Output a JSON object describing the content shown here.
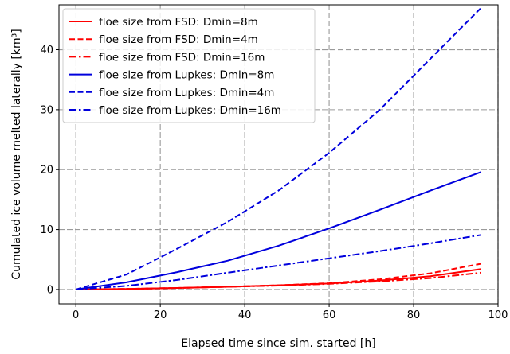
{
  "chart_data": {
    "type": "line",
    "title": "",
    "xlabel": "Elapsed time since sim. started [h]",
    "ylabel": "Cumulated ice volume melted laterally [km³]",
    "xlim": [
      -4,
      100
    ],
    "ylim": [
      -2.4,
      47.5
    ],
    "xticks": [
      0,
      20,
      40,
      60,
      80,
      100
    ],
    "yticks": [
      0,
      10,
      20,
      30,
      40
    ],
    "grid": true,
    "grid_style": "dashed",
    "legend_position": "top-left",
    "x": [
      0,
      12,
      24,
      36,
      48,
      60,
      72,
      84,
      96
    ],
    "series": [
      {
        "name": "floe size from FSD: Dmin=8m",
        "color": "#ff0000",
        "dash": "solid",
        "values": [
          0,
          0.1,
          0.25,
          0.45,
          0.7,
          1.0,
          1.5,
          2.2,
          3.4
        ]
      },
      {
        "name": "floe size from FSD: Dmin=4m",
        "color": "#ff0000",
        "dash": "dashed",
        "values": [
          0,
          0.1,
          0.25,
          0.45,
          0.7,
          1.05,
          1.7,
          2.7,
          4.3
        ]
      },
      {
        "name": "floe size from FSD: Dmin=16m",
        "color": "#ff0000",
        "dash": "dashdot",
        "values": [
          0,
          0.1,
          0.25,
          0.45,
          0.65,
          0.95,
          1.35,
          1.9,
          2.8
        ]
      },
      {
        "name": "floe size from Lupkes: Dmin=8m",
        "color": "#0000dd",
        "dash": "solid",
        "values": [
          0,
          1.2,
          2.9,
          4.8,
          7.3,
          10.2,
          13.3,
          16.5,
          19.6
        ]
      },
      {
        "name": "floe size from Lupkes: Dmin=4m",
        "color": "#0000dd",
        "dash": "dashed",
        "values": [
          0,
          2.5,
          6.8,
          11.3,
          16.5,
          22.8,
          30.0,
          38.5,
          47.0
        ]
      },
      {
        "name": "floe size from Lupkes: Dmin=16m",
        "color": "#0000dd",
        "dash": "dashdot",
        "values": [
          0,
          0.6,
          1.6,
          2.8,
          4.0,
          5.2,
          6.4,
          7.7,
          9.1
        ]
      }
    ]
  }
}
